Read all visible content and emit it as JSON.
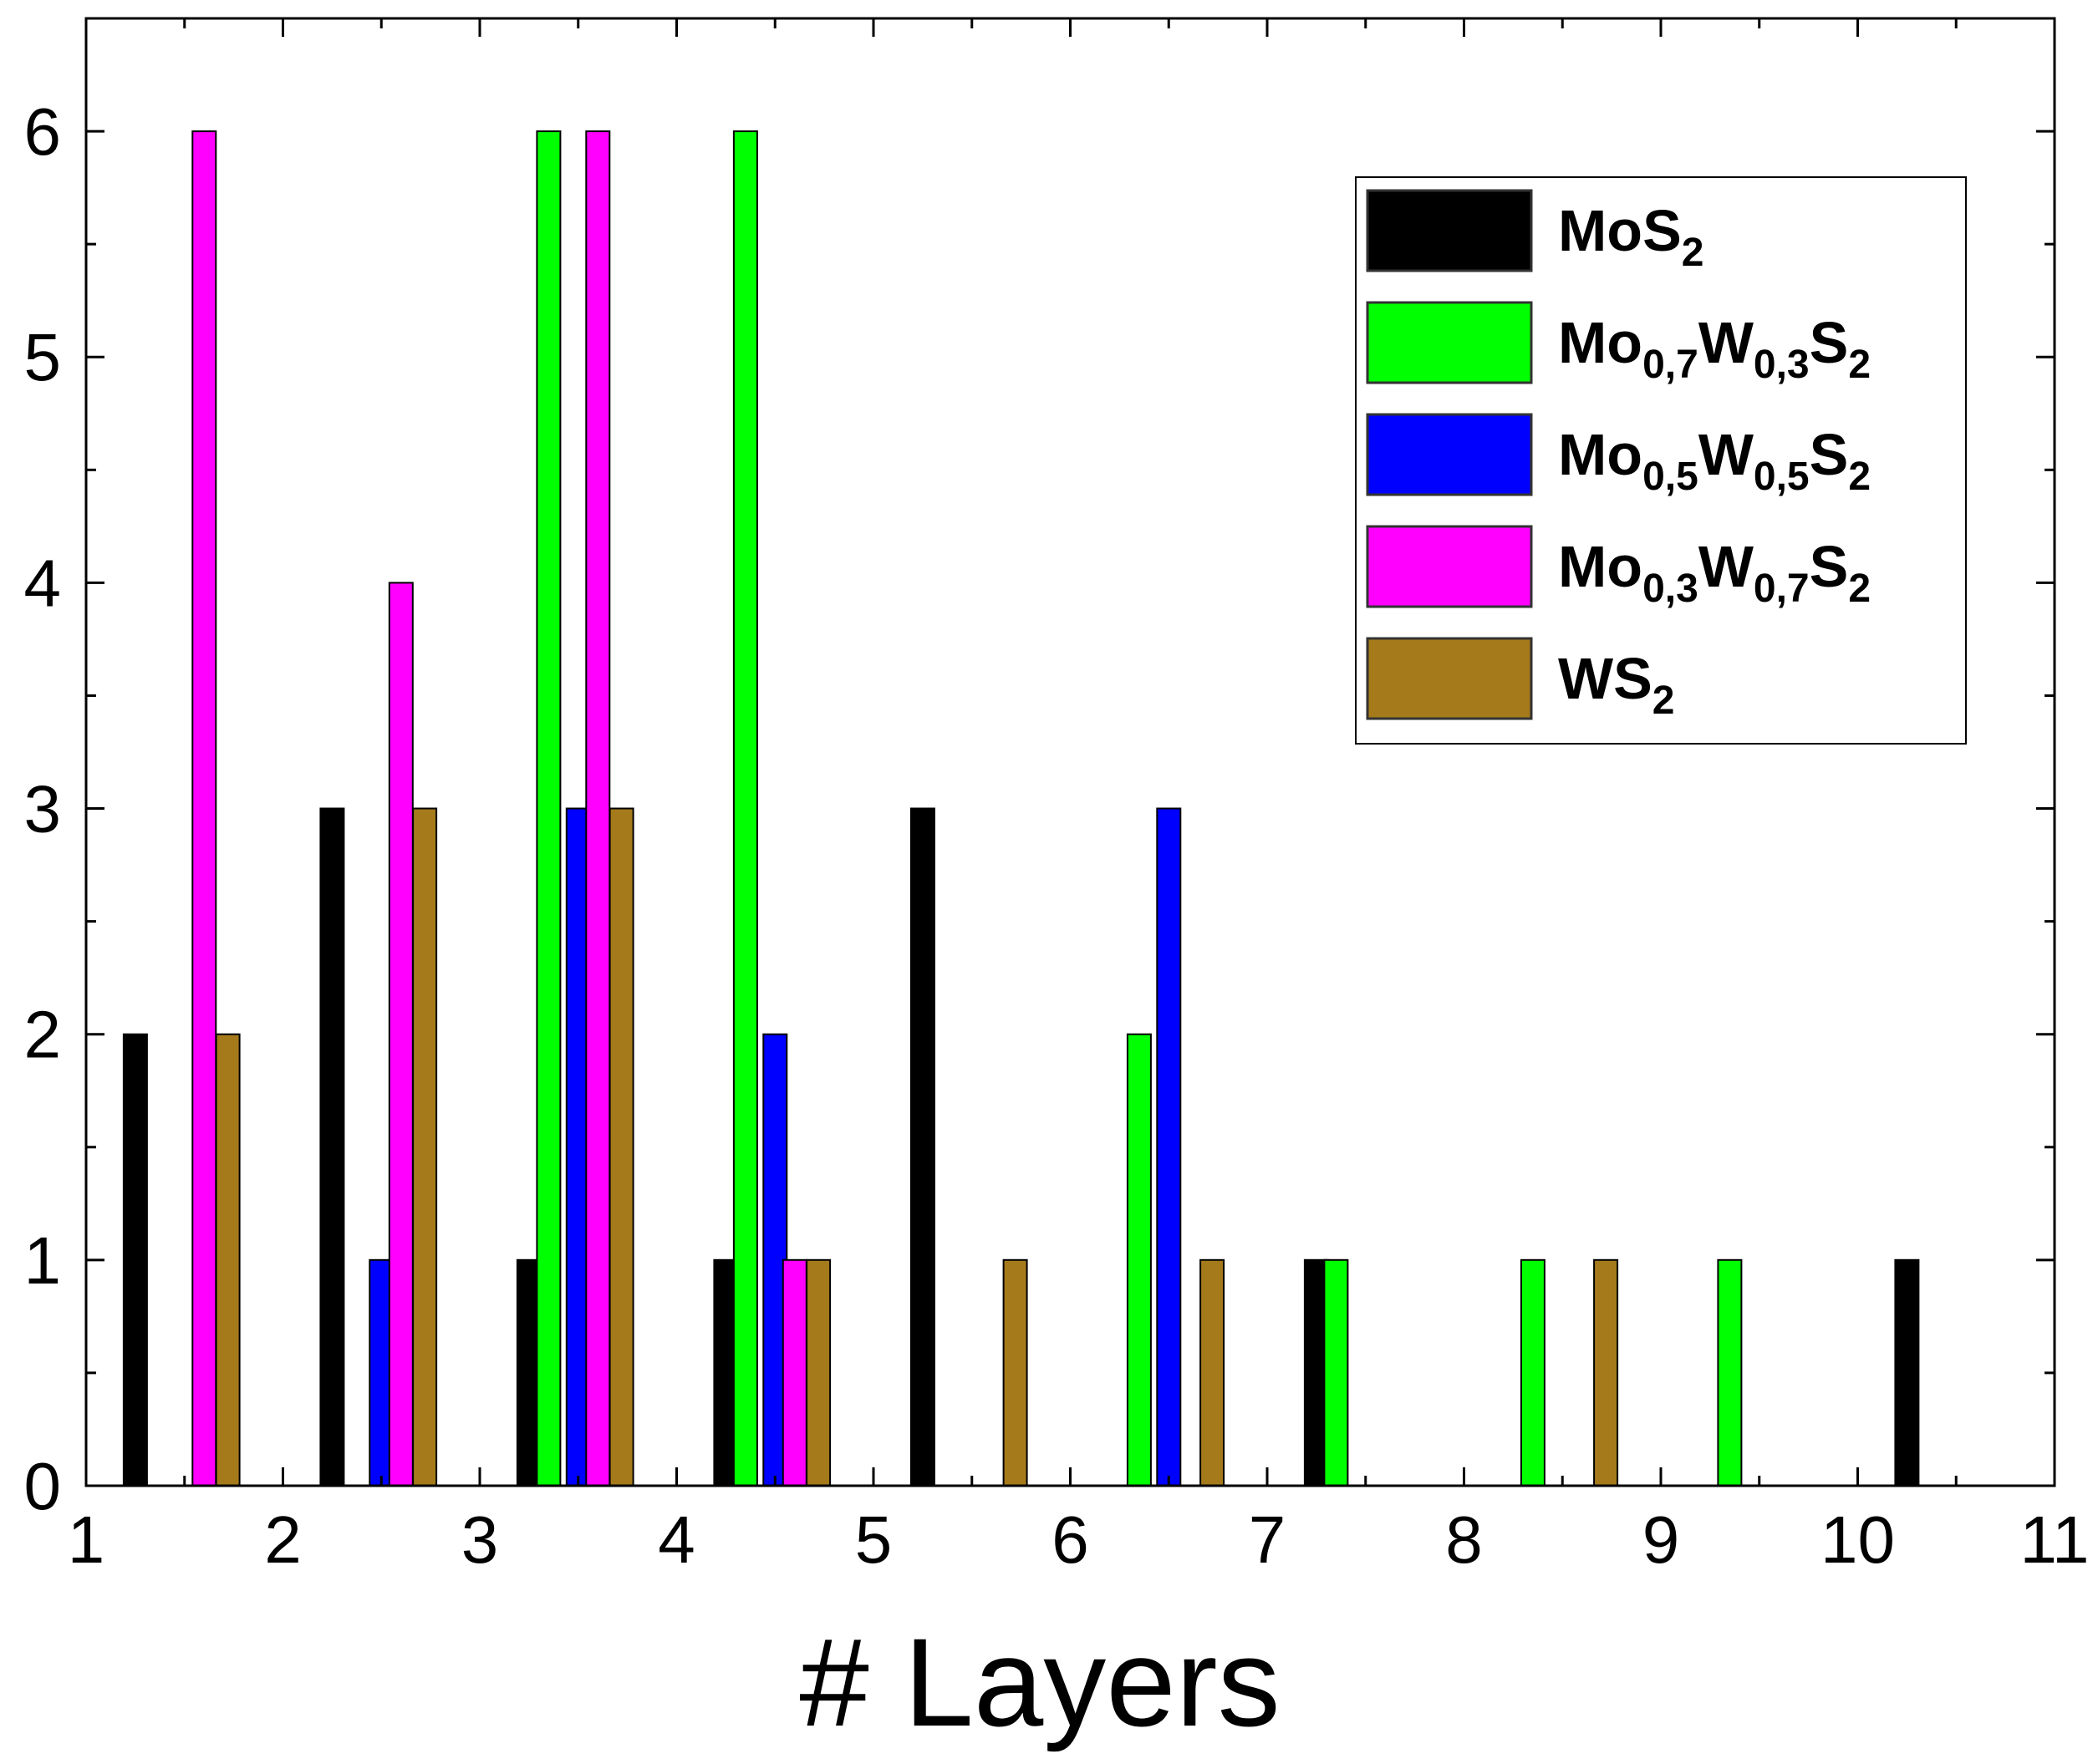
{
  "chart_data": {
    "type": "bar",
    "title": "",
    "xlabel": "# Layers",
    "ylabel": "",
    "xlim": [
      1,
      11
    ],
    "ylim": [
      0,
      6.5
    ],
    "xticks": [
      "1",
      "2",
      "3",
      "4",
      "5",
      "6",
      "7",
      "8",
      "9",
      "10",
      "11"
    ],
    "yticks": [
      "0",
      "1",
      "2",
      "3",
      "4",
      "5",
      "6"
    ],
    "grid": false,
    "legend_position": "top-right",
    "series": [
      {
        "name": "MoS2",
        "label_parts": [
          {
            "t": "MoS"
          },
          {
            "t": "2",
            "sub": true
          }
        ],
        "color": "#000000",
        "points": [
          {
            "x": 1.25,
            "y": 2
          },
          {
            "x": 2.25,
            "y": 3
          },
          {
            "x": 3.25,
            "y": 1
          },
          {
            "x": 4.25,
            "y": 1
          },
          {
            "x": 5.25,
            "y": 3
          },
          {
            "x": 7.25,
            "y": 1
          },
          {
            "x": 10.25,
            "y": 1
          }
        ]
      },
      {
        "name": "Mo0,7W0,3S2",
        "label_parts": [
          {
            "t": "Mo"
          },
          {
            "t": "0,7",
            "sub": true
          },
          {
            "t": "W"
          },
          {
            "t": "0,3",
            "sub": true
          },
          {
            "t": "S"
          },
          {
            "t": "2",
            "sub": true
          }
        ],
        "color": "#00ff00",
        "points": [
          {
            "x": 3.35,
            "y": 6
          },
          {
            "x": 4.35,
            "y": 6
          },
          {
            "x": 6.35,
            "y": 2
          },
          {
            "x": 7.35,
            "y": 1
          },
          {
            "x": 8.35,
            "y": 1
          },
          {
            "x": 9.35,
            "y": 1
          }
        ]
      },
      {
        "name": "Mo0,5W0,5S2",
        "label_parts": [
          {
            "t": "Mo"
          },
          {
            "t": "0,5",
            "sub": true
          },
          {
            "t": "W"
          },
          {
            "t": "0,5",
            "sub": true
          },
          {
            "t": "S"
          },
          {
            "t": "2",
            "sub": true
          }
        ],
        "color": "#0000ff",
        "points": [
          {
            "x": 2.5,
            "y": 1
          },
          {
            "x": 3.5,
            "y": 3
          },
          {
            "x": 4.5,
            "y": 2
          },
          {
            "x": 6.5,
            "y": 3
          }
        ]
      },
      {
        "name": "Mo0,3W0,7S2",
        "label_parts": [
          {
            "t": "Mo"
          },
          {
            "t": "0,3",
            "sub": true
          },
          {
            "t": "W"
          },
          {
            "t": "0,7",
            "sub": true
          },
          {
            "t": "S"
          },
          {
            "t": "2",
            "sub": true
          }
        ],
        "color": "#ff00ff",
        "points": [
          {
            "x": 1.6,
            "y": 6
          },
          {
            "x": 2.6,
            "y": 4
          },
          {
            "x": 3.6,
            "y": 6
          },
          {
            "x": 4.6,
            "y": 1
          }
        ]
      },
      {
        "name": "WS2",
        "label_parts": [
          {
            "t": "WS"
          },
          {
            "t": "2",
            "sub": true
          }
        ],
        "color": "#a57a1b",
        "points": [
          {
            "x": 1.72,
            "y": 2
          },
          {
            "x": 2.72,
            "y": 3
          },
          {
            "x": 3.72,
            "y": 3
          },
          {
            "x": 4.72,
            "y": 1
          },
          {
            "x": 5.72,
            "y": 1
          },
          {
            "x": 6.72,
            "y": 1
          },
          {
            "x": 8.72,
            "y": 1
          }
        ]
      }
    ]
  }
}
